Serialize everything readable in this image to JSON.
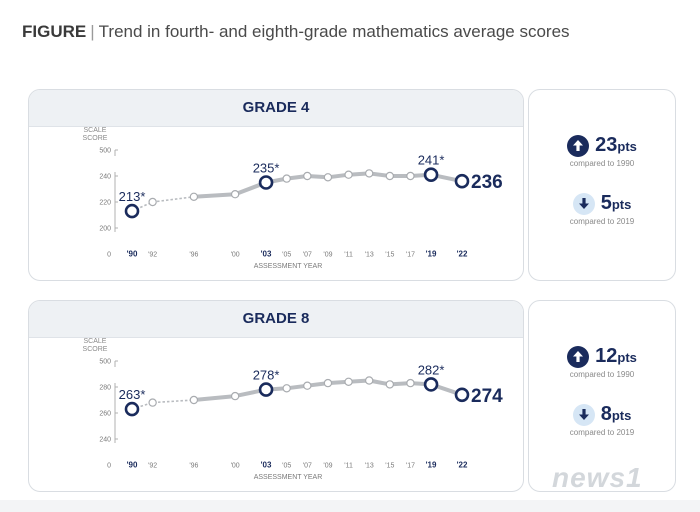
{
  "figure": {
    "lead": "FIGURE",
    "separator": "|",
    "title": "Trend in fourth- and eighth-grade mathematics average scores"
  },
  "axis": {
    "scale_label_1": "SCALE",
    "scale_label_2": "SCORE",
    "xtitle": "ASSESSMENT YEAR",
    "zero": "0",
    "x_ticks": [
      "'90",
      "'92",
      "'96",
      "'00",
      "'03",
      "'05",
      "'07",
      "'09",
      "'11",
      "'13",
      "'15",
      "'17",
      "'19",
      "'22"
    ],
    "bold_ticks": [
      "'90",
      "'03",
      "'19",
      "'22"
    ]
  },
  "colors": {
    "navy": "#1a2b5c",
    "gray_line": "#b9bcc0",
    "light_blue": "#d6e6f5"
  },
  "chart_data": [
    {
      "type": "line",
      "title": "GRADE 4",
      "ylabel": "SCALE SCORE",
      "xlabel": "ASSESSMENT YEAR",
      "ylim": [
        0,
        500
      ],
      "yticks": [
        200,
        220,
        240,
        500
      ],
      "x": [
        "'90",
        "'92",
        "'96",
        "'00",
        "'03",
        "'05",
        "'07",
        "'09",
        "'11",
        "'13",
        "'15",
        "'17",
        "'19",
        "'22"
      ],
      "values": [
        213,
        220,
        224,
        226,
        235,
        238,
        240,
        239,
        241,
        242,
        240,
        240,
        241,
        236
      ],
      "labels": [
        {
          "x": "'90",
          "text": "213*"
        },
        {
          "x": "'03",
          "text": "235*"
        },
        {
          "x": "'19",
          "text": "241*"
        },
        {
          "x": "'22",
          "text": "236"
        }
      ]
    },
    {
      "type": "line",
      "title": "GRADE 8",
      "ylabel": "SCALE SCORE",
      "xlabel": "ASSESSMENT YEAR",
      "ylim": [
        0,
        500
      ],
      "yticks": [
        240,
        260,
        280,
        500
      ],
      "x": [
        "'90",
        "'92",
        "'96",
        "'00",
        "'03",
        "'05",
        "'07",
        "'09",
        "'11",
        "'13",
        "'15",
        "'17",
        "'19",
        "'22"
      ],
      "values": [
        263,
        268,
        270,
        273,
        278,
        279,
        281,
        283,
        284,
        285,
        282,
        283,
        282,
        274
      ],
      "labels": [
        {
          "x": "'90",
          "text": "263*"
        },
        {
          "x": "'03",
          "text": "278*"
        },
        {
          "x": "'19",
          "text": "282*"
        },
        {
          "x": "'22",
          "text": "274"
        }
      ]
    }
  ],
  "stats": [
    {
      "up_value": "23",
      "up_unit": "pts",
      "up_compare": "compared to 1990",
      "down_value": "5",
      "down_unit": "pts",
      "down_compare": "compared to 2019"
    },
    {
      "up_value": "12",
      "up_unit": "pts",
      "up_compare": "compared to 1990",
      "down_value": "8",
      "down_unit": "pts",
      "down_compare": "compared to 2019"
    }
  ],
  "watermark": "news1"
}
